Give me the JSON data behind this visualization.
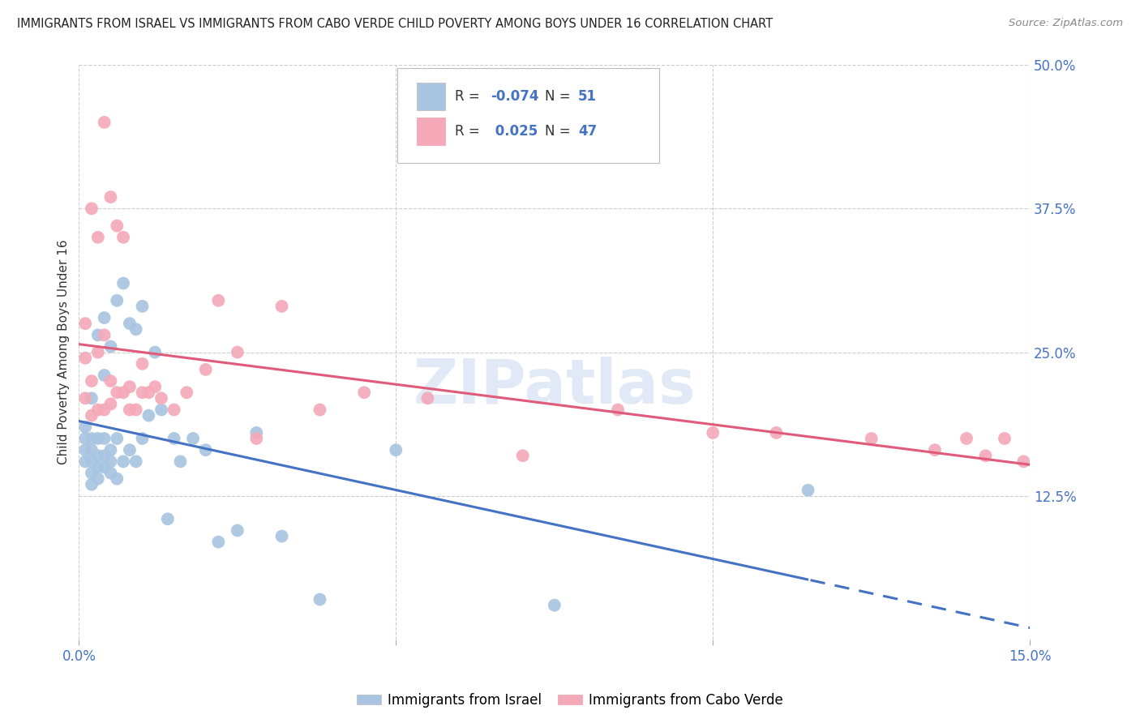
{
  "title": "IMMIGRANTS FROM ISRAEL VS IMMIGRANTS FROM CABO VERDE CHILD POVERTY AMONG BOYS UNDER 16 CORRELATION CHART",
  "source": "Source: ZipAtlas.com",
  "ylabel": "Child Poverty Among Boys Under 16",
  "xlim": [
    0.0,
    0.15
  ],
  "ylim": [
    0.0,
    0.5
  ],
  "xtick_positions": [
    0.0,
    0.05,
    0.1,
    0.15
  ],
  "xtick_labels": [
    "0.0%",
    "",
    "",
    "15.0%"
  ],
  "ytick_positions": [
    0.0,
    0.125,
    0.25,
    0.375,
    0.5
  ],
  "ytick_labels_right": [
    "",
    "12.5%",
    "25.0%",
    "37.5%",
    "50.0%"
  ],
  "legend_R_israel": "-0.074",
  "legend_N_israel": "51",
  "legend_R_cabo": "0.025",
  "legend_N_cabo": "47",
  "color_israel": "#a8c4e0",
  "color_cabo": "#f4a8b8",
  "line_color_israel": "#4472c4",
  "line_color_cabo": "#e05a7a",
  "israel_x": [
    0.001,
    0.001,
    0.001,
    0.001,
    0.002,
    0.002,
    0.002,
    0.002,
    0.002,
    0.002,
    0.003,
    0.003,
    0.003,
    0.003,
    0.003,
    0.004,
    0.004,
    0.004,
    0.004,
    0.004,
    0.005,
    0.005,
    0.005,
    0.005,
    0.006,
    0.006,
    0.006,
    0.007,
    0.007,
    0.008,
    0.008,
    0.009,
    0.009,
    0.01,
    0.01,
    0.011,
    0.012,
    0.013,
    0.014,
    0.015,
    0.016,
    0.018,
    0.02,
    0.022,
    0.025,
    0.028,
    0.032,
    0.038,
    0.05,
    0.075,
    0.115
  ],
  "israel_y": [
    0.155,
    0.165,
    0.175,
    0.185,
    0.135,
    0.145,
    0.155,
    0.165,
    0.175,
    0.21,
    0.14,
    0.15,
    0.16,
    0.175,
    0.265,
    0.15,
    0.16,
    0.175,
    0.23,
    0.28,
    0.145,
    0.155,
    0.165,
    0.255,
    0.14,
    0.175,
    0.295,
    0.155,
    0.31,
    0.165,
    0.275,
    0.155,
    0.27,
    0.175,
    0.29,
    0.195,
    0.25,
    0.2,
    0.105,
    0.175,
    0.155,
    0.175,
    0.165,
    0.085,
    0.095,
    0.18,
    0.09,
    0.035,
    0.165,
    0.03,
    0.13
  ],
  "cabo_x": [
    0.001,
    0.001,
    0.001,
    0.002,
    0.002,
    0.002,
    0.003,
    0.003,
    0.003,
    0.004,
    0.004,
    0.004,
    0.005,
    0.005,
    0.005,
    0.006,
    0.006,
    0.007,
    0.007,
    0.008,
    0.008,
    0.009,
    0.01,
    0.01,
    0.011,
    0.012,
    0.013,
    0.015,
    0.017,
    0.02,
    0.022,
    0.025,
    0.028,
    0.032,
    0.038,
    0.045,
    0.055,
    0.07,
    0.085,
    0.1,
    0.11,
    0.125,
    0.135,
    0.14,
    0.143,
    0.146,
    0.149
  ],
  "cabo_y": [
    0.21,
    0.245,
    0.275,
    0.195,
    0.225,
    0.375,
    0.2,
    0.25,
    0.35,
    0.2,
    0.265,
    0.45,
    0.205,
    0.225,
    0.385,
    0.215,
    0.36,
    0.215,
    0.35,
    0.2,
    0.22,
    0.2,
    0.215,
    0.24,
    0.215,
    0.22,
    0.21,
    0.2,
    0.215,
    0.235,
    0.295,
    0.25,
    0.175,
    0.29,
    0.2,
    0.215,
    0.21,
    0.16,
    0.2,
    0.18,
    0.18,
    0.175,
    0.165,
    0.175,
    0.16,
    0.175,
    0.155
  ]
}
